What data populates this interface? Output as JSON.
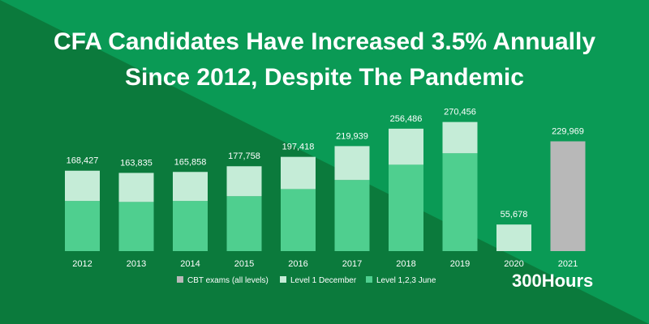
{
  "title": {
    "line1": "CFA Candidates Have Increased 3.5% Annually",
    "line2": "Since 2012, Despite The Pandemic"
  },
  "brand": "300Hours",
  "colors": {
    "bg_dark": "#0b7a3c",
    "bg_light": "#0a9a55",
    "june": "#4fcf8f",
    "december": "#c5ecd7",
    "cbt": "#b8b8b8",
    "text": "#ffffff"
  },
  "chart_data": {
    "type": "bar",
    "stacked": true,
    "title": "CFA Candidates Have Increased 3.5% Annually Since 2012, Despite The Pandemic",
    "xlabel": "",
    "ylabel": "",
    "ylim": [
      0,
      280000
    ],
    "grid": false,
    "legend_position": "bottom",
    "categories": [
      "2012",
      "2013",
      "2014",
      "2015",
      "2016",
      "2017",
      "2018",
      "2019",
      "2020",
      "2021"
    ],
    "totals": [
      168427,
      163835,
      165858,
      177758,
      197418,
      219939,
      256486,
      270456,
      55678,
      229969
    ],
    "total_labels": [
      "168,427",
      "163,835",
      "165,858",
      "177,758",
      "197,418",
      "219,939",
      "256,486",
      "270,456",
      "55,678",
      "229,969"
    ],
    "series": [
      {
        "name": "Level 1,2,3 June",
        "color": "#4fcf8f",
        "values": [
          105000,
          103000,
          105000,
          115000,
          130000,
          149000,
          181000,
          205000,
          0,
          0
        ]
      },
      {
        "name": "Level 1 December",
        "color": "#c5ecd7",
        "values": [
          63427,
          60835,
          60858,
          62758,
          67418,
          70939,
          75486,
          65456,
          55678,
          0
        ]
      },
      {
        "name": "CBT exams (all levels)",
        "color": "#b8b8b8",
        "values": [
          0,
          0,
          0,
          0,
          0,
          0,
          0,
          0,
          0,
          229969
        ]
      }
    ],
    "legend": [
      "CBT exams (all levels)",
      "Level 1 December",
      "Level 1,2,3 June"
    ]
  }
}
